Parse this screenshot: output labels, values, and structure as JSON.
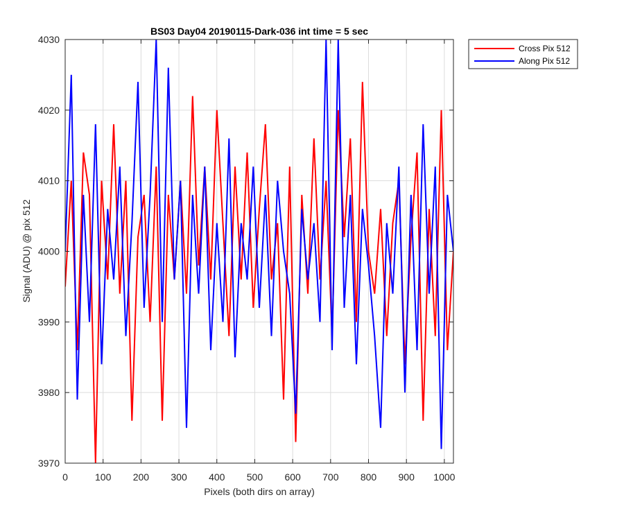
{
  "chart_data": {
    "type": "line",
    "title": "BS03 Day04 20190115-Dark-036 int time = 5 sec",
    "xlabel": "Pixels (both dirs on array)",
    "ylabel": "Signal (ADU) @ pix 512",
    "xlim": [
      0,
      1024
    ],
    "ylim": [
      3970,
      4030
    ],
    "xticks": [
      0,
      100,
      200,
      300,
      400,
      500,
      600,
      700,
      800,
      900,
      1000
    ],
    "yticks": [
      3970,
      3980,
      3990,
      4000,
      4010,
      4020,
      4030
    ],
    "grid": true,
    "legend_position": "outside-top-right",
    "series": [
      {
        "name": "Cross Pix 512",
        "color": "#ff0000",
        "x": [
          0,
          16,
          32,
          48,
          64,
          80,
          96,
          112,
          128,
          144,
          160,
          176,
          192,
          208,
          224,
          240,
          256,
          272,
          288,
          304,
          320,
          336,
          352,
          368,
          384,
          400,
          416,
          432,
          448,
          464,
          480,
          496,
          512,
          528,
          544,
          560,
          576,
          592,
          608,
          624,
          640,
          656,
          672,
          688,
          704,
          720,
          736,
          752,
          768,
          784,
          800,
          816,
          832,
          848,
          864,
          880,
          896,
          912,
          928,
          944,
          960,
          976,
          992,
          1008,
          1024
        ],
        "values": [
          3995,
          4010,
          3986,
          4014,
          4008,
          3970,
          4010,
          3996,
          4018,
          3994,
          4010,
          3976,
          4002,
          4008,
          3990,
          4012,
          3976,
          4008,
          3996,
          4010,
          3994,
          4022,
          3998,
          4012,
          3996,
          4020,
          4004,
          3988,
          4012,
          3996,
          4014,
          3992,
          4006,
          4018,
          3996,
          4004,
          3979,
          4012,
          3973,
          4008,
          3994,
          4016,
          3996,
          4010,
          3988,
          4020,
          4002,
          4016,
          3990,
          4024,
          4000,
          3994,
          4006,
          3988,
          4004,
          4010,
          3984,
          4002,
          4014,
          3976,
          4006,
          3988,
          4020,
          3986,
          4000
        ]
      },
      {
        "name": "Along Pix 512",
        "color": "#0000ff",
        "x": [
          0,
          16,
          32,
          48,
          64,
          80,
          96,
          112,
          128,
          144,
          160,
          176,
          192,
          208,
          224,
          240,
          256,
          272,
          288,
          304,
          320,
          336,
          352,
          368,
          384,
          400,
          416,
          432,
          448,
          464,
          480,
          496,
          512,
          528,
          544,
          560,
          576,
          592,
          608,
          624,
          640,
          656,
          672,
          688,
          704,
          720,
          736,
          752,
          768,
          784,
          800,
          816,
          832,
          848,
          864,
          880,
          896,
          912,
          928,
          944,
          960,
          976,
          992,
          1008,
          1024
        ],
        "values": [
          4000,
          4025,
          3979,
          4008,
          3990,
          4018,
          3984,
          4006,
          3996,
          4012,
          3988,
          4004,
          4024,
          3992,
          4008,
          4030,
          3990,
          4026,
          3996,
          4010,
          3975,
          4008,
          3994,
          4012,
          3986,
          4004,
          3990,
          4016,
          3985,
          4004,
          3996,
          4012,
          3992,
          4008,
          3988,
          4010,
          4000,
          3994,
          3977,
          4006,
          3996,
          4004,
          3990,
          4030,
          3986,
          4030,
          3992,
          4008,
          3984,
          4006,
          3998,
          3988,
          3975,
          4004,
          3994,
          4012,
          3980,
          4008,
          3986,
          4018,
          3994,
          4012,
          3972,
          4008,
          4000
        ]
      }
    ]
  }
}
